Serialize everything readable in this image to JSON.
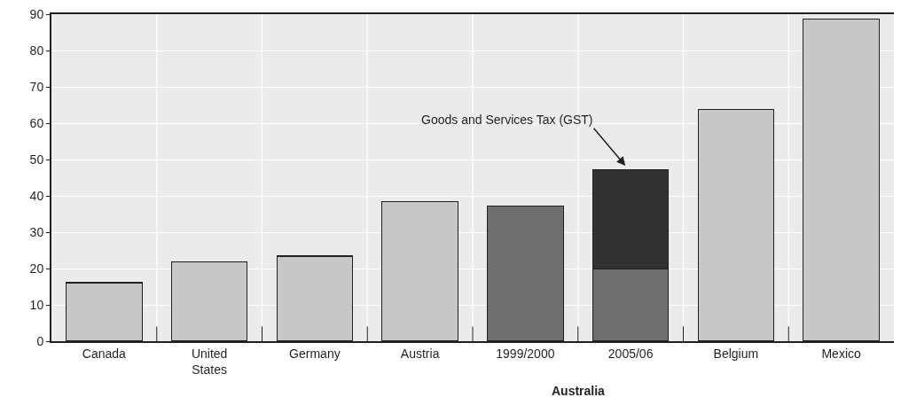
{
  "chart_data": {
    "type": "bar",
    "stacked": true,
    "categories": [
      "Canada",
      "United States",
      "Germany",
      "Austria",
      "1999/2000",
      "2005/06",
      "Belgium",
      "Mexico"
    ],
    "series": [
      {
        "values": [
          16.1,
          21.9,
          23.4,
          38.5,
          37.1,
          19.9,
          63.7,
          88.7
        ],
        "colors": [
          "#c6c7c9",
          "#c6c7c9",
          "#c6c7c9",
          "#c6c7c9",
          "#6d6e70",
          "#6d6e70",
          "#c6c7c9",
          "#c6c7c9"
        ]
      },
      {
        "values": [
          null,
          null,
          null,
          null,
          null,
          27.2,
          null,
          null
        ],
        "color": "#333233"
      }
    ],
    "ylim": [
      0,
      90
    ],
    "yticks": [
      0,
      10,
      20,
      30,
      40,
      50,
      60,
      70,
      80,
      90
    ],
    "grid": true,
    "legend": false,
    "annotations": [
      {
        "text": "Goods and Services Tax (GST)",
        "x": "2005/06",
        "y": 47.1
      },
      "Australia"
    ]
  }
}
